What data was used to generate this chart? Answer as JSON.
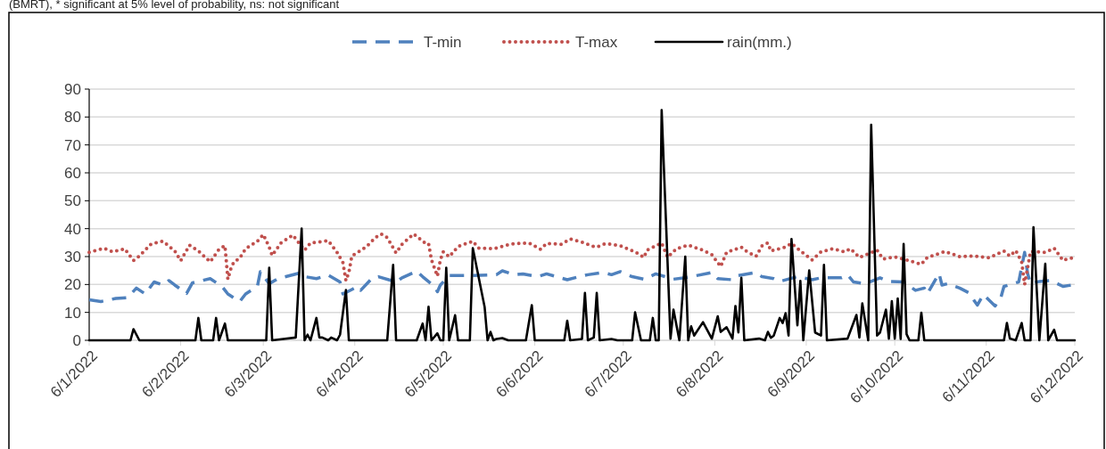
{
  "chart_data": {
    "type": "line",
    "annotations": [
      "(BMRT), * significant at 5% level of probability, ns: not significant"
    ],
    "xlim": [
      "2022-01-06",
      "2022-12-06"
    ],
    "xticks": [
      {
        "value": "2022-01-06",
        "label": "6/1/2022"
      },
      {
        "value": "2022-02-06",
        "label": "6/2/2022"
      },
      {
        "value": "2022-03-06",
        "label": "6/3/2022"
      },
      {
        "value": "2022-04-06",
        "label": "6/4/2022"
      },
      {
        "value": "2022-05-06",
        "label": "6/5/2022"
      },
      {
        "value": "2022-06-06",
        "label": "6/6/2022"
      },
      {
        "value": "2022-07-06",
        "label": "6/7/2022"
      },
      {
        "value": "2022-08-06",
        "label": "6/8/2022"
      },
      {
        "value": "2022-09-06",
        "label": "6/9/2022"
      },
      {
        "value": "2022-10-06",
        "label": "6/10/2022"
      },
      {
        "value": "2022-11-06",
        "label": "6/11/2022"
      },
      {
        "value": "2022-12-06",
        "label": "6/12/2022"
      }
    ],
    "ylim": [
      0,
      90
    ],
    "yticks": [
      0,
      10,
      20,
      30,
      40,
      50,
      60,
      70,
      80,
      90
    ],
    "grid": "y",
    "legend": "top",
    "marker": "none",
    "series": [
      {
        "name": "T-min",
        "color": "#4f81bd",
        "line_style": "dashed",
        "x": [
          "2022-01-06",
          "2022-01-10",
          "2022-01-15",
          "2022-01-19",
          "2022-01-22",
          "2022-01-25",
          "2022-01-28",
          "2022-01-31",
          "2022-02-02",
          "2022-02-04",
          "2022-02-08",
          "2022-02-10",
          "2022-02-16",
          "2022-02-20",
          "2022-02-22",
          "2022-02-26",
          "2022-02-28",
          "2022-03-04",
          "2022-03-05",
          "2022-03-08",
          "2022-03-11",
          "2022-03-18",
          "2022-03-19",
          "2022-03-24",
          "2022-03-28",
          "2022-04-01",
          "2022-04-02",
          "2022-04-05",
          "2022-04-07",
          "2022-04-08",
          "2022-04-12",
          "2022-04-14",
          "2022-04-20",
          "2022-04-22",
          "2022-04-27",
          "2022-04-29",
          "2022-05-03",
          "2022-05-04",
          "2022-05-05",
          "2022-05-08",
          "2022-05-16",
          "2022-05-24",
          "2022-05-26",
          "2022-05-30",
          "2022-06-02",
          "2022-06-07",
          "2022-06-10",
          "2022-06-17",
          "2022-06-21",
          "2022-06-24",
          "2022-06-29",
          "2022-07-02",
          "2022-07-05",
          "2022-07-09",
          "2022-07-13",
          "2022-07-17",
          "2022-07-23",
          "2022-07-27",
          "2022-07-30",
          "2022-08-05",
          "2022-08-07",
          "2022-08-12",
          "2022-08-14",
          "2022-08-20",
          "2022-08-22",
          "2022-08-26",
          "2022-08-28",
          "2022-09-03",
          "2022-09-08",
          "2022-09-11",
          "2022-09-18",
          "2022-09-20",
          "2022-09-22",
          "2022-09-26",
          "2022-10-01",
          "2022-10-04",
          "2022-10-09",
          "2022-10-13",
          "2022-10-16",
          "2022-10-17",
          "2022-10-21",
          "2022-10-22",
          "2022-10-24",
          "2022-10-28",
          "2022-10-31",
          "2022-11-03",
          "2022-11-05",
          "2022-11-09",
          "2022-11-11",
          "2022-11-12",
          "2022-11-17",
          "2022-11-19",
          "2022-11-20",
          "2022-11-21",
          "2022-11-24",
          "2022-11-28",
          "2022-12-02",
          "2022-12-05"
        ],
        "values": [
          14.5,
          13.9,
          15,
          15.3,
          18.7,
          16.6,
          20.9,
          19.8,
          21.4,
          19.8,
          16.8,
          20.6,
          22.1,
          19.3,
          16.6,
          13.9,
          16.6,
          19.3,
          24.6,
          20.3,
          22.1,
          24,
          23,
          22.1,
          23.4,
          20.9,
          16.6,
          18.2,
          19.3,
          17.9,
          22.4,
          22.8,
          20.9,
          22.4,
          24.8,
          22.8,
          19.3,
          17.4,
          19.8,
          23.2,
          23.2,
          23.5,
          24.9,
          23.5,
          23.8,
          22.8,
          23.8,
          21.7,
          22.8,
          23.5,
          24.3,
          23.5,
          24.6,
          22.8,
          21.9,
          23.8,
          21.9,
          22.4,
          23,
          24.3,
          22.1,
          21.7,
          23.2,
          24.3,
          22.8,
          22.1,
          21.1,
          22.8,
          21.7,
          22.4,
          22.4,
          23.5,
          20.9,
          20.3,
          22.4,
          21.1,
          20.9,
          17.9,
          18.7,
          16.6,
          24,
          19.8,
          20.3,
          18.7,
          17.1,
          12.6,
          16.4,
          12.3,
          15.5,
          19.3,
          20.9,
          31.5,
          24,
          20.3,
          21.1,
          21.4,
          19.3,
          19.8
        ]
      },
      {
        "name": "T-max",
        "color": "#c0504d",
        "line_style": "dotted",
        "x": [
          "2022-01-06",
          "2022-01-11",
          "2022-01-14",
          "2022-01-18",
          "2022-01-21",
          "2022-01-23",
          "2022-01-27",
          "2022-01-31",
          "2022-02-04",
          "2022-02-06",
          "2022-02-09",
          "2022-02-12",
          "2022-02-16",
          "2022-02-19",
          "2022-02-21",
          "2022-02-22",
          "2022-02-23",
          "2022-02-24",
          "2022-02-26",
          "2022-02-28",
          "2022-03-04",
          "2022-03-06",
          "2022-03-08",
          "2022-03-09",
          "2022-03-12",
          "2022-03-16",
          "2022-03-20",
          "2022-03-22",
          "2022-03-26",
          "2022-03-28",
          "2022-03-31",
          "2022-04-02",
          "2022-04-03",
          "2022-04-04",
          "2022-04-05",
          "2022-04-07",
          "2022-04-10",
          "2022-04-13",
          "2022-04-15",
          "2022-04-17",
          "2022-04-20",
          "2022-04-22",
          "2022-04-26",
          "2022-04-30",
          "2022-05-01",
          "2022-05-02",
          "2022-05-04",
          "2022-05-05",
          "2022-05-06",
          "2022-05-08",
          "2022-05-11",
          "2022-05-16",
          "2022-05-18",
          "2022-05-23",
          "2022-05-29",
          "2022-06-04",
          "2022-06-08",
          "2022-06-10",
          "2022-06-15",
          "2022-06-18",
          "2022-06-23",
          "2022-06-25",
          "2022-06-27",
          "2022-06-30",
          "2022-07-05",
          "2022-07-10",
          "2022-07-13",
          "2022-07-14",
          "2022-07-19",
          "2022-07-21",
          "2022-07-24",
          "2022-07-28",
          "2022-08-02",
          "2022-08-05",
          "2022-08-08",
          "2022-08-10",
          "2022-08-15",
          "2022-08-17",
          "2022-08-20",
          "2022-08-22",
          "2022-08-24",
          "2022-08-25",
          "2022-08-30",
          "2022-09-01",
          "2022-09-05",
          "2022-09-08",
          "2022-09-11",
          "2022-09-15",
          "2022-09-19",
          "2022-09-21",
          "2022-09-24",
          "2022-09-30",
          "2022-10-02",
          "2022-10-06",
          "2022-10-10",
          "2022-10-15",
          "2022-10-17",
          "2022-10-23",
          "2022-10-28",
          "2022-11-02",
          "2022-11-07",
          "2022-11-12",
          "2022-11-14",
          "2022-11-16",
          "2022-11-18",
          "2022-11-19",
          "2022-11-21",
          "2022-11-26",
          "2022-11-29",
          "2022-12-02",
          "2022-12-04",
          "2022-12-06"
        ],
        "values": [
          31.5,
          33,
          31.7,
          32.8,
          28.6,
          30.2,
          34.5,
          35.5,
          32,
          28.5,
          34.1,
          32,
          28.1,
          32.6,
          33.9,
          21.9,
          25.6,
          28,
          29.4,
          32.8,
          35.5,
          37.9,
          33.4,
          30.4,
          34.9,
          37.7,
          32.3,
          34.9,
          35.4,
          35.7,
          31.5,
          27.8,
          21.4,
          24.3,
          30.2,
          31.5,
          33.6,
          36.8,
          38.1,
          36.8,
          31.3,
          34.4,
          38.1,
          34.7,
          34.7,
          28.8,
          23,
          28.8,
          31.7,
          29.9,
          33.6,
          35.5,
          33,
          32.8,
          34.5,
          34.9,
          32.6,
          34.7,
          34.4,
          36.3,
          34.9,
          33.9,
          33.4,
          34.7,
          33.9,
          31.7,
          29.7,
          32.3,
          34.9,
          29.7,
          32.8,
          34.1,
          32.3,
          30.7,
          26.4,
          31.5,
          33.4,
          31.7,
          30.1,
          33.8,
          34.9,
          32,
          33.4,
          34.7,
          31.2,
          28.8,
          31.7,
          32.8,
          31.7,
          32.8,
          29.7,
          32.3,
          29.1,
          29.9,
          28.8,
          27.2,
          29.7,
          31.8,
          30,
          30.2,
          29.6,
          32,
          30.2,
          32.2,
          28.1,
          20,
          31.8,
          31.5,
          33,
          28.6,
          29.4,
          29.5
        ]
      },
      {
        "name": "rain(mm.)",
        "color": "#000000",
        "line_style": "solid",
        "x": [
          "2022-01-06",
          "2022-01-20",
          "2022-01-21",
          "2022-01-23",
          "2022-02-11",
          "2022-02-12",
          "2022-02-13",
          "2022-02-17",
          "2022-02-18",
          "2022-02-19",
          "2022-02-21",
          "2022-02-22",
          "2022-03-07",
          "2022-03-08",
          "2022-03-09",
          "2022-03-17",
          "2022-03-19",
          "2022-03-20",
          "2022-03-21",
          "2022-03-22",
          "2022-03-24",
          "2022-03-25",
          "2022-03-26",
          "2022-03-28",
          "2022-03-29",
          "2022-03-31",
          "2022-04-01",
          "2022-04-03",
          "2022-04-04",
          "2022-04-17",
          "2022-04-19",
          "2022-04-20",
          "2022-04-27",
          "2022-04-29",
          "2022-04-30",
          "2022-05-01",
          "2022-05-02",
          "2022-05-04",
          "2022-05-05",
          "2022-05-06",
          "2022-05-07",
          "2022-05-08",
          "2022-05-10",
          "2022-05-11",
          "2022-05-15",
          "2022-05-16",
          "2022-05-20",
          "2022-05-21",
          "2022-05-22",
          "2022-05-23",
          "2022-05-24",
          "2022-05-26",
          "2022-05-28",
          "2022-06-03",
          "2022-06-05",
          "2022-06-06",
          "2022-06-16",
          "2022-06-17",
          "2022-06-18",
          "2022-06-22",
          "2022-06-23",
          "2022-06-24",
          "2022-06-26",
          "2022-06-27",
          "2022-06-28",
          "2022-07-02",
          "2022-07-04",
          "2022-07-09",
          "2022-07-10",
          "2022-07-12",
          "2022-07-15",
          "2022-07-16",
          "2022-07-17",
          "2022-07-18",
          "2022-07-19",
          "2022-07-22",
          "2022-07-23",
          "2022-07-25",
          "2022-07-27",
          "2022-07-28",
          "2022-07-29",
          "2022-07-30",
          "2022-08-02",
          "2022-08-05",
          "2022-08-07",
          "2022-08-08",
          "2022-08-10",
          "2022-08-12",
          "2022-08-13",
          "2022-08-14",
          "2022-08-15",
          "2022-08-16",
          "2022-08-21",
          "2022-08-23",
          "2022-08-24",
          "2022-08-25",
          "2022-08-26",
          "2022-08-28",
          "2022-08-29",
          "2022-08-30",
          "2022-08-31",
          "2022-09-01",
          "2022-09-03",
          "2022-09-04",
          "2022-09-05",
          "2022-09-07",
          "2022-09-09",
          "2022-09-11",
          "2022-09-12",
          "2022-09-13",
          "2022-09-20",
          "2022-09-23",
          "2022-09-24",
          "2022-09-25",
          "2022-09-27",
          "2022-09-28",
          "2022-09-30",
          "2022-10-01",
          "2022-10-03",
          "2022-10-04",
          "2022-10-05",
          "2022-10-06",
          "2022-10-07",
          "2022-10-08",
          "2022-10-09",
          "2022-10-10",
          "2022-10-11",
          "2022-10-14",
          "2022-10-15",
          "2022-10-16",
          "2022-11-12",
          "2022-11-13",
          "2022-11-14",
          "2022-11-16",
          "2022-11-18",
          "2022-11-19",
          "2022-11-21",
          "2022-11-22",
          "2022-11-24",
          "2022-11-26",
          "2022-11-27",
          "2022-11-29",
          "2022-11-30",
          "2022-12-06"
        ],
        "values": [
          0,
          0,
          4,
          0,
          0,
          8,
          0,
          0,
          8,
          0,
          6,
          0,
          0,
          26,
          0,
          1,
          40,
          0,
          2,
          0,
          8,
          1,
          1,
          0,
          1,
          0,
          2,
          18,
          0,
          0,
          27,
          0,
          0,
          6,
          0,
          12,
          0,
          2.5,
          0,
          0,
          26,
          0,
          9,
          0,
          0,
          33,
          12,
          0,
          3,
          0,
          0.5,
          0.8,
          0,
          0,
          12.6,
          0,
          0,
          7,
          0,
          0.5,
          17,
          0,
          1,
          17,
          0,
          0.5,
          0,
          0,
          10,
          0,
          0,
          8,
          0,
          0,
          82.5,
          0.6,
          11,
          0,
          30,
          0,
          5,
          1.7,
          6.5,
          0.6,
          8.6,
          3,
          4.7,
          0.6,
          12.3,
          2.8,
          22.4,
          0,
          0.6,
          0,
          3,
          0.9,
          1.7,
          8,
          6.2,
          9.7,
          1.7,
          36.3,
          5.4,
          21.3,
          0,
          25,
          2.8,
          1.7,
          27,
          0,
          0.6,
          9.1,
          1,
          13.2,
          0,
          77.2,
          1.7,
          2.8,
          11,
          0.6,
          14,
          0.6,
          15,
          0.5,
          34.5,
          2.2,
          0,
          0,
          9.9,
          0,
          0,
          6.2,
          0.6,
          0,
          6.2,
          0,
          0,
          40.5,
          0,
          27.4,
          0,
          3.8,
          0,
          0
        ]
      }
    ]
  }
}
